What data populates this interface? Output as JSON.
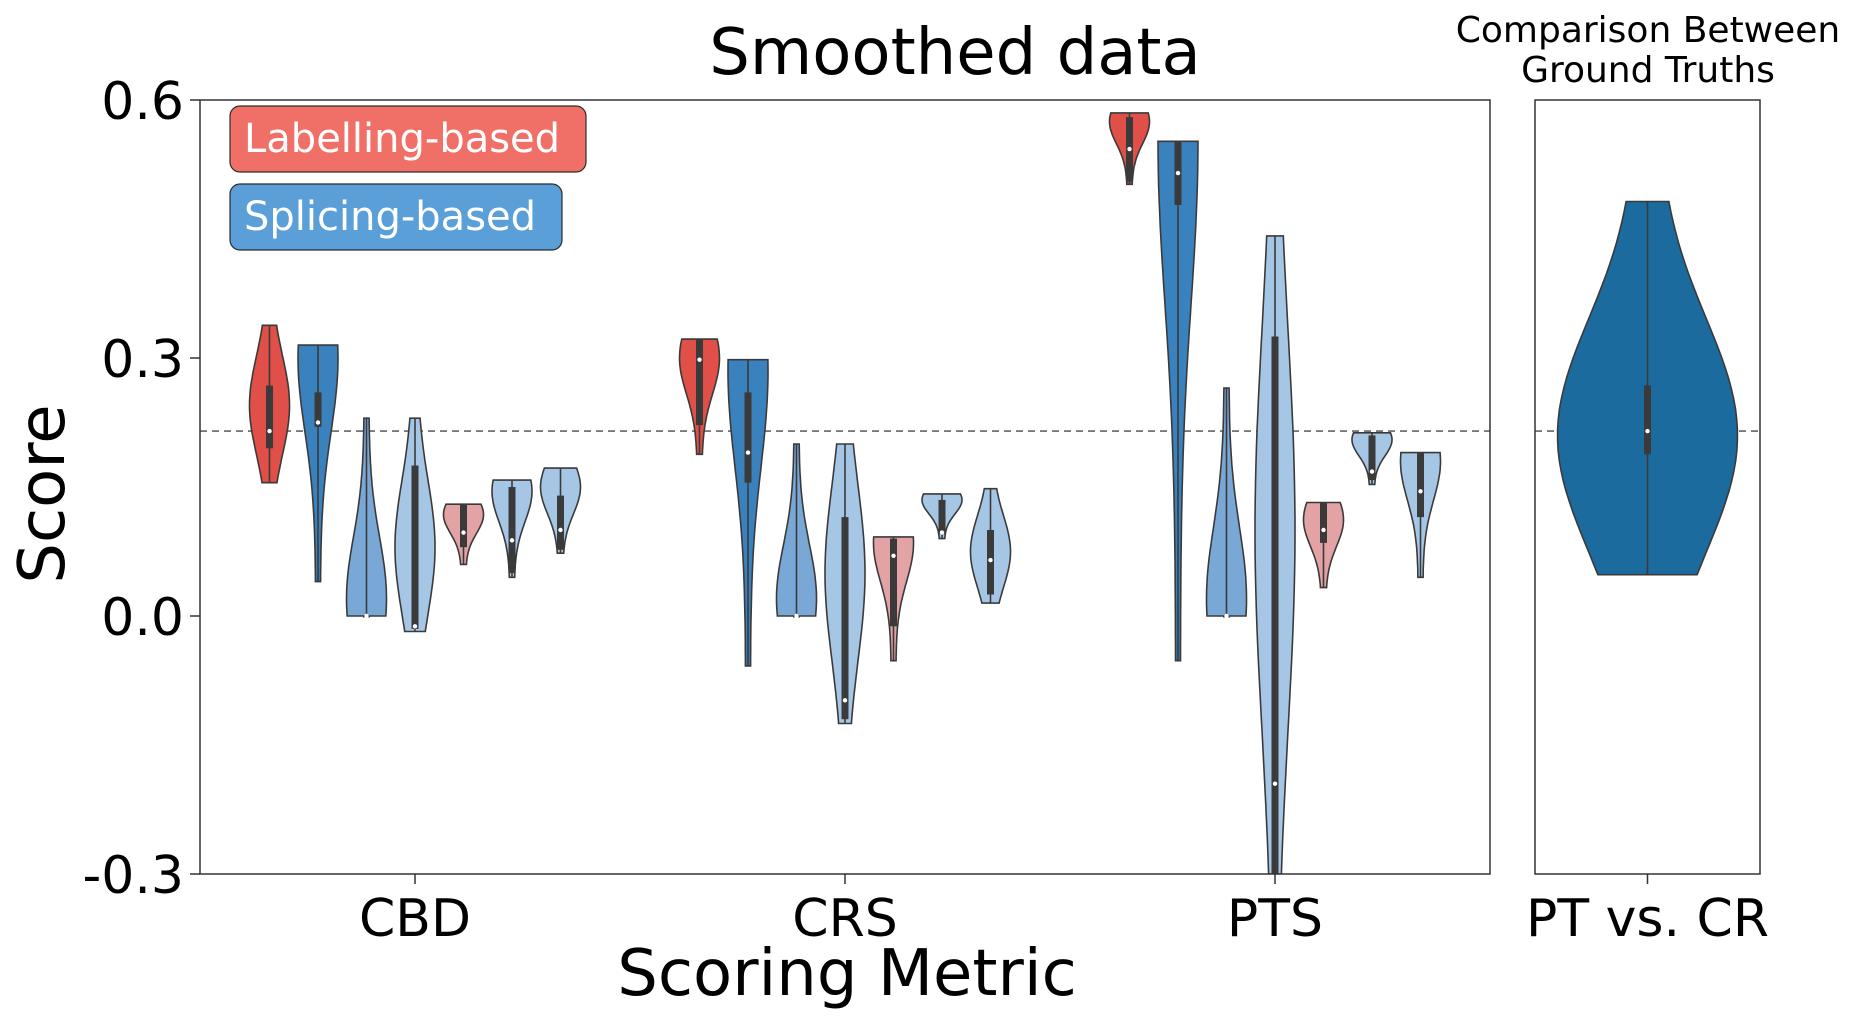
{
  "chart_data": [
    {
      "type": "violin",
      "title": "Smoothed data",
      "xlabel": "Scoring Metric",
      "ylabel": "Score",
      "ylim": [
        -0.3,
        0.6
      ],
      "yticks": [
        {
          "value": 0.6,
          "label": "0.6"
        },
        {
          "value": 0.3,
          "label": "0.3"
        },
        {
          "value": 0.0,
          "label": "0.0"
        },
        {
          "value": -0.3,
          "label": "-0.3"
        }
      ],
      "categories": [
        "CBD",
        "CRS",
        "PTS"
      ],
      "reference_line": 0.215,
      "grid": false,
      "legend": {
        "placement": "top-left",
        "entries": [
          {
            "label": "Labelling-based",
            "color": "#f07067"
          },
          {
            "label": "Splicing-based",
            "color": "#5a9fd8"
          }
        ]
      },
      "series": [
        {
          "color": "#e05048",
          "values": [
            {
              "min": 0.155,
              "q1": 0.195,
              "median": 0.215,
              "q3": 0.268,
              "max": 0.338,
              "widest": 0.245
            },
            {
              "min": 0.188,
              "q1": 0.222,
              "median": 0.298,
              "q3": 0.322,
              "max": 0.322,
              "widest": 0.3
            },
            {
              "min": 0.502,
              "q1": 0.505,
              "median": 0.543,
              "q3": 0.58,
              "max": 0.585,
              "widest": 0.575
            }
          ]
        },
        {
          "color": "#3a82be",
          "values": [
            {
              "min": 0.04,
              "q1": 0.22,
              "median": 0.225,
              "q3": 0.26,
              "max": 0.315,
              "widest": 0.3
            },
            {
              "min": -0.058,
              "q1": 0.155,
              "median": 0.19,
              "q3": 0.26,
              "max": 0.298,
              "widest": 0.285
            },
            {
              "min": -0.052,
              "q1": 0.478,
              "median": 0.515,
              "q3": 0.552,
              "max": 0.552,
              "widest": 0.552
            }
          ]
        },
        {
          "color": "#7aa8d6",
          "values": [
            {
              "min": 0.0,
              "q1": 0.0,
              "median": 0.0,
              "q3": 0.0,
              "max": 0.23,
              "widest": 0.02
            },
            {
              "min": 0.0,
              "q1": 0.0,
              "median": 0.0,
              "q3": 0.0,
              "max": 0.2,
              "widest": 0.02
            },
            {
              "min": 0.0,
              "q1": 0.0,
              "median": 0.0,
              "q3": 0.0,
              "max": 0.265,
              "widest": 0.02
            }
          ]
        },
        {
          "color": "#a6c6e6",
          "values": [
            {
              "min": -0.018,
              "q1": -0.015,
              "median": -0.012,
              "q3": 0.175,
              "max": 0.23,
              "widest": 0.08
            },
            {
              "min": -0.125,
              "q1": -0.12,
              "median": -0.098,
              "q3": 0.115,
              "max": 0.2,
              "widest": 0.05
            },
            {
              "min": -0.3,
              "q1": -0.3,
              "median": -0.195,
              "q3": 0.325,
              "max": 0.442,
              "widest": 0.1
            }
          ]
        },
        {
          "color": "#e3a3a5",
          "values": [
            {
              "min": 0.06,
              "q1": 0.08,
              "median": 0.097,
              "q3": 0.13,
              "max": 0.13,
              "widest": 0.118
            },
            {
              "min": -0.052,
              "q1": -0.012,
              "median": 0.07,
              "q3": 0.09,
              "max": 0.092,
              "widest": 0.085
            },
            {
              "min": 0.033,
              "q1": 0.085,
              "median": 0.1,
              "q3": 0.132,
              "max": 0.132,
              "widest": 0.112
            }
          ]
        },
        {
          "color": "#a6c6e6",
          "values": [
            {
              "min": 0.045,
              "q1": 0.05,
              "median": 0.088,
              "q3": 0.15,
              "max": 0.158,
              "widest": 0.145
            },
            {
              "min": 0.09,
              "q1": 0.095,
              "median": 0.097,
              "q3": 0.135,
              "max": 0.142,
              "widest": 0.135
            },
            {
              "min": 0.153,
              "q1": 0.158,
              "median": 0.168,
              "q3": 0.21,
              "max": 0.213,
              "widest": 0.205
            }
          ]
        },
        {
          "color": "#a6c6e6",
          "values": [
            {
              "min": 0.073,
              "q1": 0.077,
              "median": 0.1,
              "q3": 0.14,
              "max": 0.172,
              "widest": 0.15
            },
            {
              "min": 0.015,
              "q1": 0.025,
              "median": 0.065,
              "q3": 0.1,
              "max": 0.148,
              "widest": 0.075
            },
            {
              "min": 0.045,
              "q1": 0.115,
              "median": 0.145,
              "q3": 0.19,
              "max": 0.19,
              "widest": 0.18
            }
          ]
        }
      ]
    },
    {
      "type": "violin",
      "title": "Comparison Between\nGround Truths",
      "categories": [
        "PT vs. CR"
      ],
      "ylim": [
        -0.3,
        0.6
      ],
      "reference_line": 0.215,
      "series": [
        {
          "color": "#1b6b9e",
          "values": [
            {
              "min": 0.048,
              "q1": 0.188,
              "median": 0.215,
              "q3": 0.268,
              "max": 0.482,
              "widest": 0.21
            }
          ]
        }
      ]
    }
  ]
}
